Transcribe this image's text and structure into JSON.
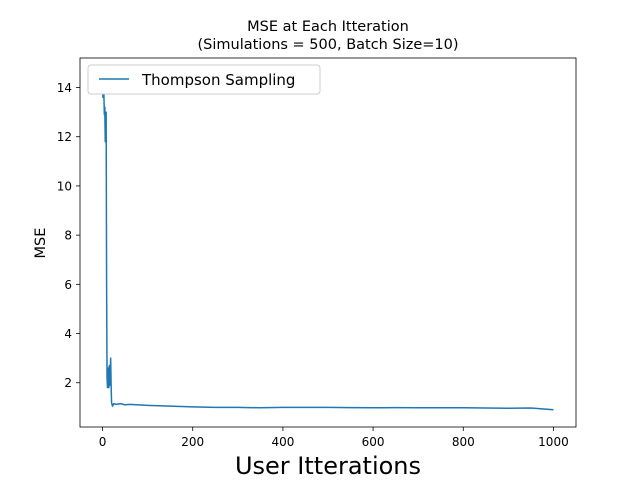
{
  "chart_data": {
    "type": "line",
    "title": "MSE at Each Itteration",
    "subtitle": "(Simulations = 500, Batch Size=10)",
    "xlabel": "User Itterations",
    "ylabel": "MSE",
    "xlim": [
      -50,
      1050
    ],
    "ylim": [
      0.2,
      15.2
    ],
    "xticks": [
      0,
      200,
      400,
      600,
      800,
      1000
    ],
    "yticks": [
      2,
      4,
      6,
      8,
      10,
      12,
      14
    ],
    "grid": false,
    "legend_position": "top-left",
    "series": [
      {
        "name": "Thompson Sampling",
        "color": "#1f77b4",
        "x": [
          0,
          1,
          2,
          3,
          4,
          5,
          6,
          7,
          8,
          9,
          10,
          11,
          12,
          13,
          14,
          15,
          16,
          17,
          18,
          19,
          20,
          22,
          25,
          30,
          40,
          50,
          60,
          80,
          100,
          150,
          200,
          250,
          300,
          350,
          400,
          450,
          500,
          550,
          600,
          650,
          700,
          750,
          800,
          850,
          900,
          950,
          1000
        ],
        "y": [
          14.0,
          13.6,
          14.5,
          13.7,
          12.9,
          13.2,
          11.8,
          12.5,
          13.0,
          6.0,
          2.2,
          1.8,
          2.6,
          2.1,
          1.8,
          2.7,
          1.9,
          2.0,
          3.0,
          1.9,
          1.2,
          1.05,
          1.15,
          1.12,
          1.15,
          1.1,
          1.12,
          1.1,
          1.08,
          1.05,
          1.02,
          1.0,
          1.0,
          0.98,
          1.0,
          1.0,
          1.0,
          0.99,
          0.98,
          0.99,
          0.98,
          0.98,
          0.98,
          0.97,
          0.96,
          0.97,
          0.9
        ]
      }
    ]
  }
}
